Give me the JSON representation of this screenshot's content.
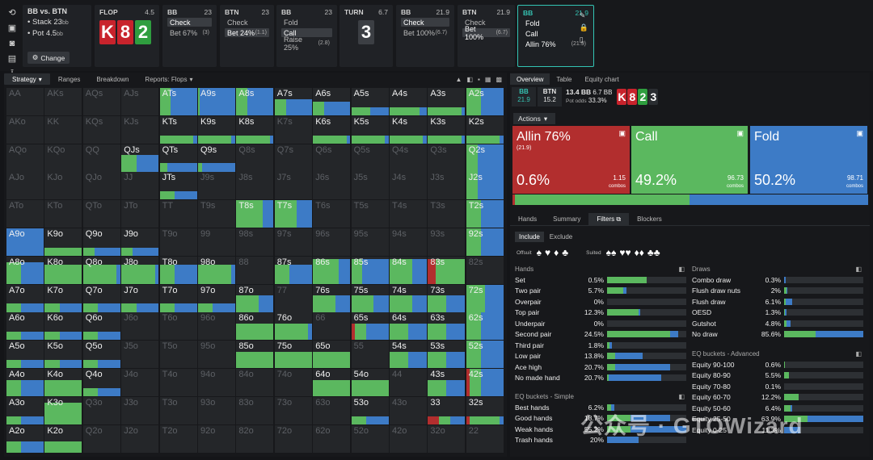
{
  "colors": {
    "allin": "#b22e2e",
    "call": "#5bb85f",
    "fold": "#3d7bc6",
    "accent": "#35c2b2"
  },
  "spot": {
    "title": "BB vs. BTN",
    "stack": "Stack 23",
    "stack_unit": "bb",
    "pot": "Pot 4.5",
    "pot_unit": "bb",
    "change": "Change"
  },
  "streets": [
    {
      "label": "FLOP",
      "value": "4.5"
    },
    {
      "label": "BB",
      "value": "23",
      "actions": [
        {
          "t": "Check",
          "c": "",
          "sel": true
        },
        {
          "t": "Bet 67%",
          "c": "(3)",
          "sel": false
        }
      ]
    },
    {
      "label": "BTN",
      "value": "23",
      "actions": [
        {
          "t": "Check",
          "c": "",
          "sel": false
        },
        {
          "t": "Bet 24%",
          "c": "(1.1)",
          "sel": true
        }
      ]
    },
    {
      "label": "BB",
      "value": "23",
      "actions": [
        {
          "t": "Fold",
          "c": "",
          "sel": false
        },
        {
          "t": "Call",
          "c": "",
          "sel": true
        },
        {
          "t": "Raise 25%",
          "c": "(2.8)",
          "sel": false
        }
      ]
    },
    {
      "label": "TURN",
      "value": "6.7"
    },
    {
      "label": "BB",
      "value": "21.9",
      "actions": [
        {
          "t": "Check",
          "c": "",
          "sel": true
        },
        {
          "t": "Bet 100%",
          "c": "(6.7)",
          "sel": false
        }
      ]
    },
    {
      "label": "BTN",
      "value": "21.9",
      "actions": [
        {
          "t": "Check",
          "c": "",
          "sel": false
        },
        {
          "t": "Bet 100%",
          "c": "(6.7)",
          "sel": true
        }
      ]
    },
    {
      "label": "BB",
      "value": "21.9",
      "actions": [
        {
          "t": "Fold",
          "c": "",
          "sel": false
        },
        {
          "t": "Call",
          "c": "",
          "sel": false
        },
        {
          "t": "Allin 76%",
          "c": "(21.9)",
          "sel": false
        }
      ]
    }
  ],
  "flop_cards": [
    {
      "r": "K",
      "c": "red"
    },
    {
      "r": "8",
      "c": "red"
    },
    {
      "r": "2",
      "c": "green"
    }
  ],
  "turn_card": {
    "r": "3",
    "c": "gray"
  },
  "left_tabs": [
    "Strategy",
    "Ranges",
    "Breakdown",
    "Reports: Flops"
  ],
  "grid": [
    [
      "AA",
      "AKs",
      "AQs",
      "AJs",
      "ATs",
      "A9s",
      "A8s",
      "A7s",
      "A6s",
      "A5s",
      "A4s",
      "A3s",
      "A2s"
    ],
    [
      "AKo",
      "KK",
      "KQs",
      "KJs",
      "KTs",
      "K9s",
      "K8s",
      "K7s",
      "K6s",
      "K5s",
      "K4s",
      "K3s",
      "K2s"
    ],
    [
      "AQo",
      "KQo",
      "QQ",
      "QJs",
      "QTs",
      "Q9s",
      "Q8s",
      "Q7s",
      "Q6s",
      "Q5s",
      "Q4s",
      "Q3s",
      "Q2s"
    ],
    [
      "AJo",
      "KJo",
      "QJo",
      "JJ",
      "JTs",
      "J9s",
      "J8s",
      "J7s",
      "J6s",
      "J5s",
      "J4s",
      "J3s",
      "J2s"
    ],
    [
      "ATo",
      "KTo",
      "QTo",
      "JTo",
      "TT",
      "T9s",
      "T8s",
      "T7s",
      "T6s",
      "T5s",
      "T4s",
      "T3s",
      "T2s"
    ],
    [
      "A9o",
      "K9o",
      "Q9o",
      "J9o",
      "T9o",
      "99",
      "98s",
      "97s",
      "96s",
      "95s",
      "94s",
      "93s",
      "92s"
    ],
    [
      "A8o",
      "K8o",
      "Q8o",
      "J8o",
      "T8o",
      "98o",
      "88",
      "87s",
      "86s",
      "85s",
      "84s",
      "83s",
      "82s"
    ],
    [
      "A7o",
      "K7o",
      "Q7o",
      "J7o",
      "T7o",
      "97o",
      "87o",
      "77",
      "76s",
      "75s",
      "74s",
      "73s",
      "72s"
    ],
    [
      "A6o",
      "K6o",
      "Q6o",
      "J6o",
      "T6o",
      "96o",
      "86o",
      "76o",
      "66",
      "65s",
      "64s",
      "63s",
      "62s"
    ],
    [
      "A5o",
      "K5o",
      "Q5o",
      "J5o",
      "T5o",
      "95o",
      "85o",
      "75o",
      "65o",
      "55",
      "54s",
      "53s",
      "52s"
    ],
    [
      "A4o",
      "K4o",
      "Q4o",
      "J4o",
      "T4o",
      "94o",
      "84o",
      "74o",
      "64o",
      "54o",
      "44",
      "43s",
      "42s"
    ],
    [
      "A3o",
      "K3o",
      "Q3o",
      "J3o",
      "T3o",
      "93o",
      "83o",
      "73o",
      "63o",
      "53o",
      "43o",
      "33",
      "32s"
    ],
    [
      "A2o",
      "K2o",
      "Q2o",
      "J2o",
      "T2o",
      "92o",
      "82o",
      "72o",
      "62o",
      "52o",
      "42o",
      "32o",
      "22"
    ]
  ],
  "grid_strategy": {
    "ATs": [
      0,
      0.3,
      0.7,
      1
    ],
    "A9s": [
      0,
      0.05,
      0.95,
      1
    ],
    "A8s": [
      0,
      0.3,
      0.7,
      1
    ],
    "A7s": [
      0,
      0.3,
      0.7,
      0.6
    ],
    "A6s": [
      0,
      0.3,
      0.7,
      0.5
    ],
    "A5s": [
      0,
      0.5,
      0.5,
      0.3
    ],
    "A4s": [
      0,
      0.8,
      0.2,
      0.3
    ],
    "A3s": [
      0,
      0.9,
      0.1,
      0.3
    ],
    "A2s": [
      0,
      0.4,
      0.6,
      1
    ],
    "KTs": [
      0,
      0.9,
      0.1,
      0.3
    ],
    "K9s": [
      0,
      0.9,
      0.1,
      0.3
    ],
    "K8s": [
      0,
      0.9,
      0.1,
      0.3
    ],
    "K6s": [
      0,
      0.9,
      0.1,
      0.3
    ],
    "K5s": [
      0,
      0.9,
      0.1,
      0.3
    ],
    "K4s": [
      0,
      0.9,
      0.1,
      0.3
    ],
    "K3s": [
      0,
      0.9,
      0.1,
      0.3
    ],
    "K2s": [
      0,
      0.9,
      0.1,
      0.3
    ],
    "QJs": [
      0,
      0.4,
      0.6,
      0.6
    ],
    "Q2s": [
      0,
      0.3,
      0.7,
      1
    ],
    "QTs": [
      0,
      0.2,
      0.8,
      0.3
    ],
    "Q9s": [
      0,
      0.1,
      0.9,
      0.3
    ],
    "JTs": [
      0,
      0.4,
      0.6,
      0.3
    ],
    "J2s": [
      0,
      0.3,
      0.7,
      1
    ],
    "T8s": [
      0,
      0.7,
      0.3,
      1
    ],
    "T7s": [
      0,
      0.6,
      0.4,
      1
    ],
    "T2s": [
      0,
      0.4,
      0.6,
      1
    ],
    "A9o": [
      0,
      0,
      1,
      1
    ],
    "K9o": [
      0,
      1,
      0,
      0.3
    ],
    "Q9o": [
      0,
      0.3,
      0.7,
      0.3
    ],
    "J9o": [
      0,
      0.3,
      0.7,
      0.3
    ],
    "92s": [
      0,
      0.4,
      0.6,
      1
    ],
    "A8o": [
      0,
      0.4,
      0.6,
      0.8
    ],
    "K8o": [
      0,
      1,
      0,
      0.7
    ],
    "Q8o": [
      0,
      0.9,
      0.1,
      0.7
    ],
    "J8o": [
      0,
      0.9,
      0.1,
      0.7
    ],
    "T8o": [
      0,
      0.4,
      0.6,
      0.7
    ],
    "98o": [
      0,
      0.9,
      0.1,
      0.7
    ],
    "87s": [
      0,
      0.4,
      0.6,
      0.7
    ],
    "86s": [
      0,
      0.7,
      0.3,
      0.9
    ],
    "85s": [
      0,
      0.3,
      0.7,
      0.9
    ],
    "84s": [
      0,
      0.6,
      0.4,
      0.9
    ],
    "83s": [
      0.2,
      0.8,
      0,
      0.9
    ],
    "A7o": [
      0,
      0.4,
      0.6,
      0.3
    ],
    "K7o": [
      0,
      0.4,
      0.6,
      0.3
    ],
    "Q7o": [
      0,
      0.4,
      0.6,
      0.3
    ],
    "J7o": [
      0,
      0.4,
      0.6,
      0.3
    ],
    "T7o": [
      0,
      0.4,
      0.6,
      0.3
    ],
    "97o": [
      0,
      0.4,
      0.6,
      0.3
    ],
    "87o": [
      0,
      0.6,
      0.4,
      0.6
    ],
    "76s": [
      0,
      0.6,
      0.4,
      0.6
    ],
    "75s": [
      0,
      0.6,
      0.4,
      0.6
    ],
    "74s": [
      0,
      0.6,
      0.4,
      0.6
    ],
    "73s": [
      0,
      0.5,
      0.5,
      0.6
    ],
    "72s": [
      0,
      0.5,
      0.5,
      1
    ],
    "A6o": [
      0,
      0.4,
      0.6,
      0.3
    ],
    "K6o": [
      0,
      0.4,
      0.6,
      0.3
    ],
    "Q6o": [
      0,
      0.4,
      0.6,
      0.3
    ],
    "86o": [
      0,
      1,
      0,
      0.6
    ],
    "76o": [
      0,
      0.9,
      0.1,
      0.6
    ],
    "65s": [
      0.1,
      0.3,
      0.6,
      0.6
    ],
    "64s": [
      0,
      0.5,
      0.5,
      0.6
    ],
    "63s": [
      0,
      0.5,
      0.5,
      0.6
    ],
    "62s": [
      0,
      0.4,
      0.6,
      1
    ],
    "A5o": [
      0,
      0.4,
      0.6,
      0.3
    ],
    "K5o": [
      0,
      0.4,
      0.6,
      0.3
    ],
    "Q5o": [
      0,
      0.4,
      0.6,
      0.3
    ],
    "85o": [
      0,
      1,
      0,
      0.6
    ],
    "75o": [
      0,
      1,
      0,
      0.6
    ],
    "65o": [
      0,
      1,
      0,
      0.6
    ],
    "54s": [
      0,
      0.5,
      0.5,
      0.6
    ],
    "53s": [
      0,
      0.5,
      0.5,
      0.6
    ],
    "52s": [
      0,
      0.4,
      0.6,
      1
    ],
    "A4o": [
      0,
      0.4,
      0.6,
      0.6
    ],
    "K4o": [
      0,
      1,
      0,
      0.6
    ],
    "Q4o": [
      0,
      0.4,
      0.6,
      0.3
    ],
    "64o": [
      0,
      1,
      0,
      0.6
    ],
    "54o": [
      0,
      1,
      0,
      0.6
    ],
    "43s": [
      0,
      0.5,
      0.5,
      0.6
    ],
    "42s": [
      0.1,
      0.3,
      0.6,
      1
    ],
    "A3o": [
      0,
      0.4,
      0.6,
      0.3
    ],
    "K3o": [
      0,
      1,
      0,
      0.8
    ],
    "53o": [
      0,
      0.4,
      0.6,
      0.3
    ],
    "33": [
      0.3,
      0.3,
      0.4,
      0.3
    ],
    "32s": [
      0.1,
      0.8,
      0.1,
      0.3
    ],
    "A2o": [
      0,
      0.4,
      0.6,
      0.4
    ],
    "K2o": [
      0,
      1,
      0,
      0.4
    ]
  },
  "right_tabs": [
    "Overview",
    "Table",
    "Equity chart"
  ],
  "summary": {
    "bb_label": "BB",
    "bb_val": "21.9",
    "btn_label": "BTN",
    "btn_val": "15.2",
    "pot_a": "13.4 BB",
    "pot_b": "6.7 BB",
    "pot_odds_label": "Pot odds",
    "pot_odds": "33.3%"
  },
  "board": [
    {
      "r": "K",
      "c": "red"
    },
    {
      "r": "8",
      "c": "red"
    },
    {
      "r": "2",
      "c": "green"
    },
    {
      "r": "3",
      "c": "dark"
    }
  ],
  "actions_label": "Actions",
  "action_boxes": [
    {
      "name": "Allin 76%",
      "sub": "(21.9)",
      "pct": "0.6%",
      "combos": "1.15",
      "combos_label": "combos",
      "color": "#b22e2e"
    },
    {
      "name": "Call",
      "sub": "",
      "pct": "49.2%",
      "combos": "96.73",
      "combos_label": "combos",
      "color": "#5bb85f"
    },
    {
      "name": "Fold",
      "sub": "",
      "pct": "50.2%",
      "combos": "98.71",
      "combos_label": "combos",
      "color": "#3d7bc6"
    }
  ],
  "freq": [
    0.6,
    49.2,
    50.2
  ],
  "right_tabs2": [
    "Hands",
    "Summary",
    "Filters",
    "Blockers"
  ],
  "include": "Include",
  "exclude": "Exclude",
  "offsuit_label": "Offsuit",
  "suited_label": "Suited",
  "hands": {
    "title": "Hands",
    "rows": [
      {
        "n": "Set",
        "p": "0.5%",
        "v": [
          0.5,
          0
        ]
      },
      {
        "n": "Two pair",
        "p": "5.7%",
        "v": [
          0.2,
          0.05
        ]
      },
      {
        "n": "Overpair",
        "p": "0%",
        "v": [
          0,
          0
        ]
      },
      {
        "n": "Top pair",
        "p": "12.3%",
        "v": [
          0.4,
          0.02
        ]
      },
      {
        "n": "Underpair",
        "p": "0%",
        "v": [
          0,
          0
        ]
      },
      {
        "n": "Second pair",
        "p": "24.5%",
        "v": [
          0.8,
          0.1
        ]
      },
      {
        "n": "Third pair",
        "p": "1.8%",
        "v": [
          0.03,
          0.03
        ]
      },
      {
        "n": "Low pair",
        "p": "13.8%",
        "v": [
          0.1,
          0.35
        ]
      },
      {
        "n": "Ace high",
        "p": "20.7%",
        "v": [
          0.1,
          0.7
        ]
      },
      {
        "n": "No made hand",
        "p": "20.7%",
        "v": [
          0.02,
          0.66
        ]
      }
    ]
  },
  "eqs": {
    "title": "EQ buckets - Simple",
    "rows": [
      {
        "n": "Best hands",
        "p": "6.2%",
        "v": [
          0.05,
          0.04
        ]
      },
      {
        "n": "Good hands",
        "p": "18.7%",
        "v": [
          0.3,
          0.5
        ]
      },
      {
        "n": "Weak hands",
        "p": "55.2%",
        "v": [
          0.3,
          0.7
        ]
      },
      {
        "n": "Trash hands",
        "p": "20%",
        "v": [
          0,
          0.4
        ]
      }
    ]
  },
  "draws": {
    "title": "Draws",
    "rows": [
      {
        "n": "Combo draw",
        "p": "0.3%",
        "v": [
          0,
          0.02
        ]
      },
      {
        "n": "Flush draw nuts",
        "p": "2%",
        "v": [
          0.03,
          0.01
        ]
      },
      {
        "n": "Flush draw",
        "p": "6.1%",
        "v": [
          0.02,
          0.08
        ]
      },
      {
        "n": "OESD",
        "p": "1.3%",
        "v": [
          0.01,
          0.02
        ]
      },
      {
        "n": "Gutshot",
        "p": "4.8%",
        "v": [
          0.03,
          0.05
        ]
      },
      {
        "n": "No draw",
        "p": "85.6%",
        "v": [
          0.4,
          0.6
        ]
      }
    ]
  },
  "eqa": {
    "title": "EQ buckets - Advanced",
    "rows": [
      {
        "n": "Equity 90-100",
        "p": "0.6%",
        "v": [
          0.01,
          0
        ]
      },
      {
        "n": "Equity 80-90",
        "p": "5.5%",
        "v": [
          0.06,
          0
        ]
      },
      {
        "n": "Equity 70-80",
        "p": "0.1%",
        "v": [
          0,
          0
        ]
      },
      {
        "n": "Equity 60-70",
        "p": "12.2%",
        "v": [
          0.18,
          0
        ]
      },
      {
        "n": "Equity 50-60",
        "p": "6.4%",
        "v": [
          0.08,
          0.02
        ]
      },
      {
        "n": "Equity 25-50",
        "p": "63.9%",
        "v": [
          0.3,
          0.7
        ]
      },
      {
        "n": "Equity 0-25",
        "p": "11.3%",
        "v": [
          0,
          0.2
        ]
      }
    ]
  },
  "watermark": "公众号 · GTOWizard"
}
